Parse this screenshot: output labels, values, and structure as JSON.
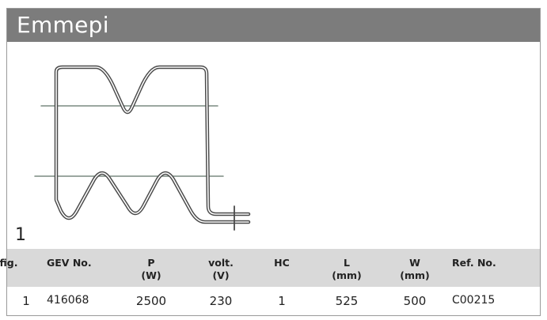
{
  "header": {
    "title": "Emmepi"
  },
  "figure": {
    "label": "1"
  },
  "table": {
    "columns": [
      {
        "label": "fig."
      },
      {
        "label": "GEV No."
      },
      {
        "label": "P",
        "unit": "(W)"
      },
      {
        "label": "volt.",
        "unit": "(V)"
      },
      {
        "label": "HC"
      },
      {
        "label": "L",
        "unit": "(mm)"
      },
      {
        "label": "W",
        "unit": "(mm)"
      },
      {
        "label": "Ref. No."
      }
    ],
    "rows": [
      [
        1,
        "416068",
        2500,
        230,
        1,
        525,
        500,
        "C00215"
      ]
    ]
  }
}
